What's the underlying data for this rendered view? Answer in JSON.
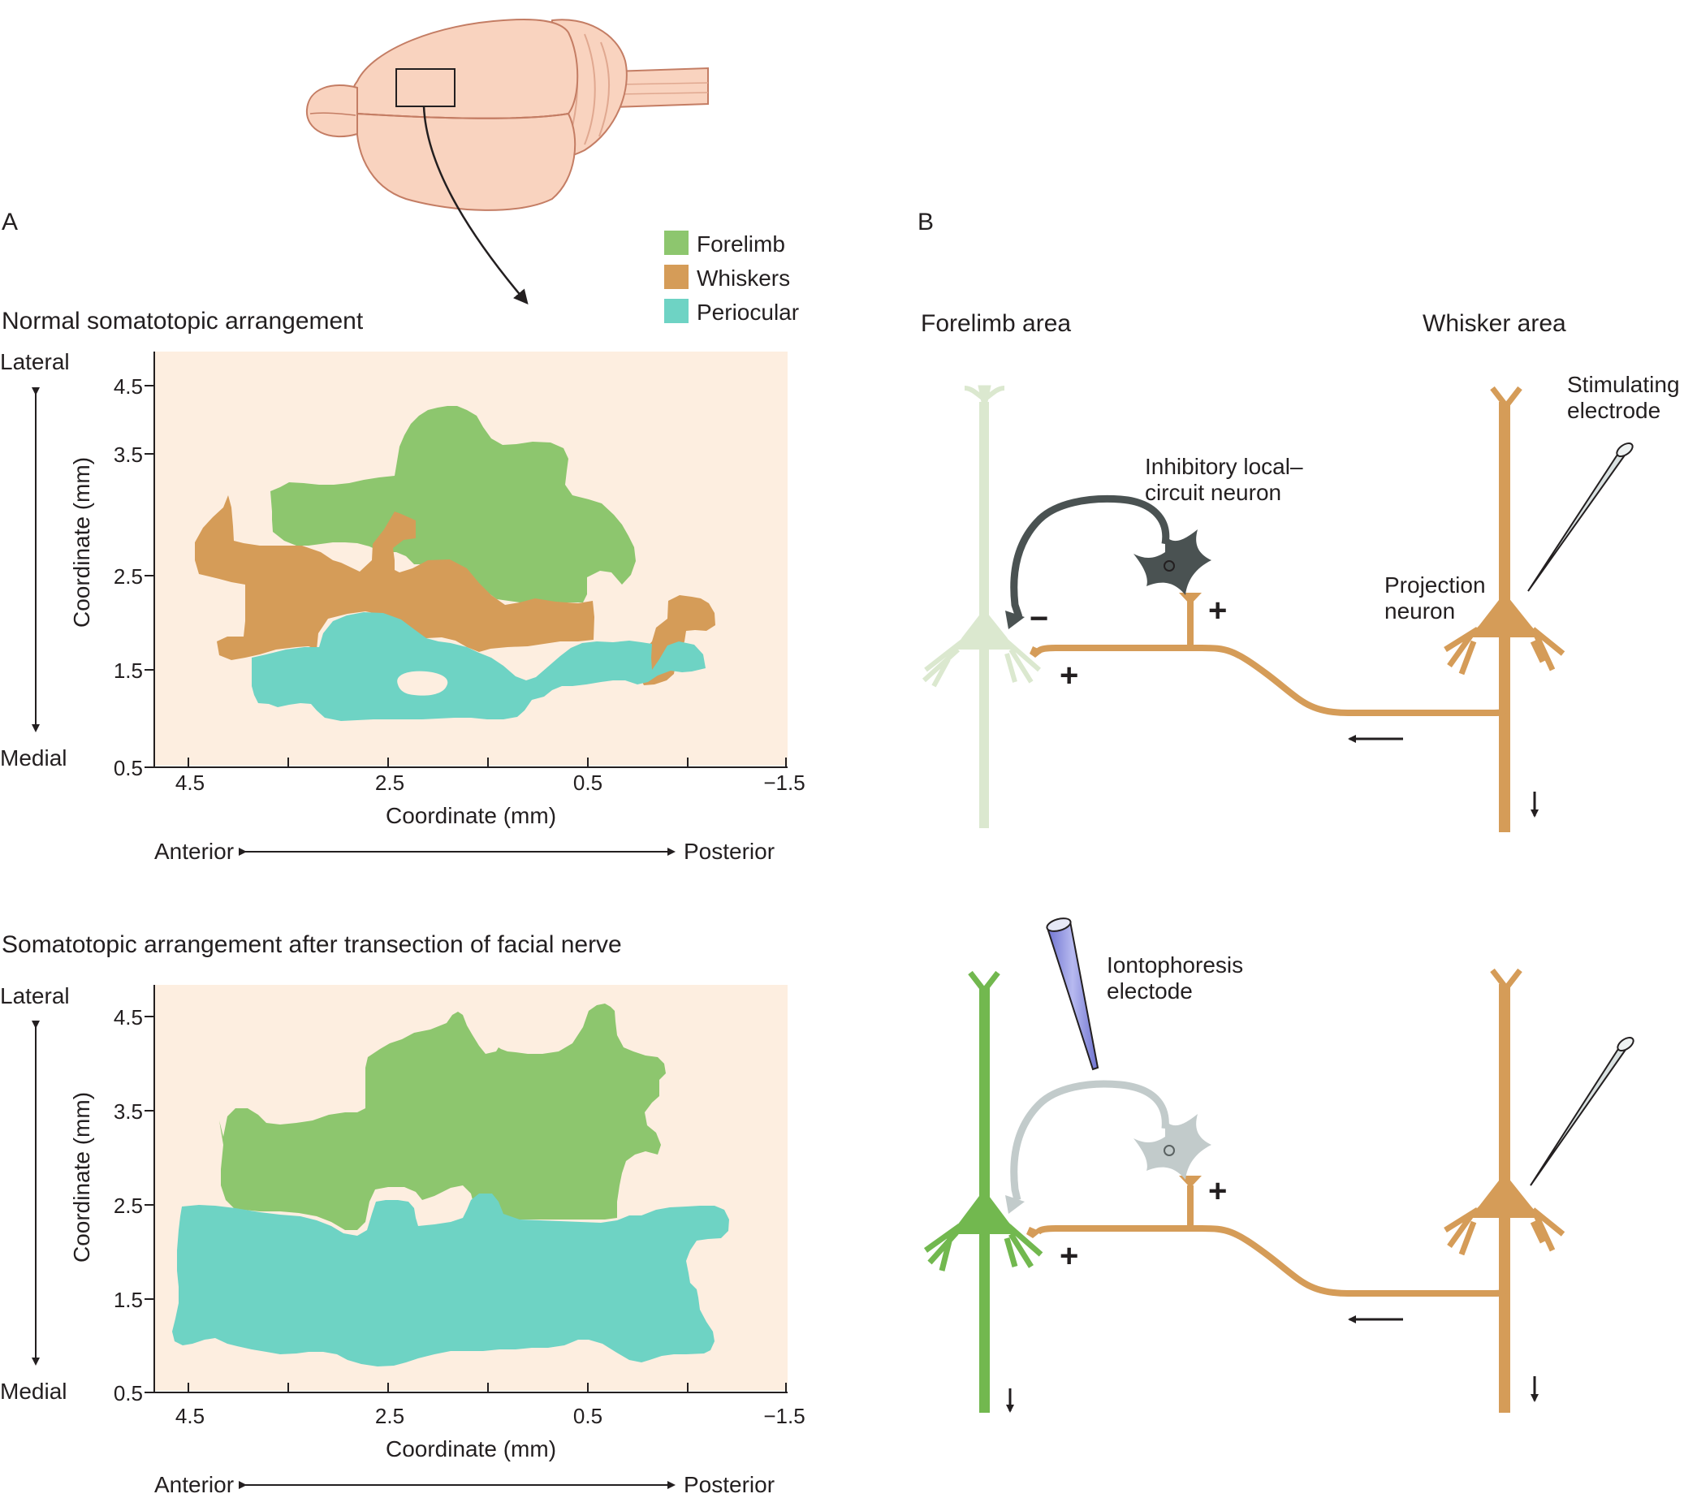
{
  "colors": {
    "forelimb": "#8dc66e",
    "whiskers": "#d59c58",
    "periocular": "#6ed3c4",
    "map_background": "#fdeee0",
    "brain": "#f9d3bf",
    "inhibitory_neuron": "#4a5252",
    "inhibitory_neuron_faded": "#c2cbcb",
    "forelimb_neuron_faded": "#dbe8cf",
    "forelimb_neuron_active": "#72b84f",
    "electrode": "#d9e1e1",
    "iontophoresis_fill": "#9094e0"
  },
  "panel_a": {
    "label": "A",
    "legend": [
      {
        "key": "forelimb",
        "label": "Forelimb"
      },
      {
        "key": "whiskers",
        "label": "Whiskers"
      },
      {
        "key": "periocular",
        "label": "Periocular"
      }
    ],
    "map_normal": {
      "title": "Normal somatotopic arrangement",
      "lateral_label": "Lateral",
      "medial_label": "Medial",
      "y_axis_label": "Coordinate (mm)",
      "y_ticks": [
        "4.5",
        "3.5",
        "2.5",
        "1.5",
        "0.5"
      ],
      "x_axis_label": "Coordinate (mm)",
      "x_ticks": [
        "4.5",
        "2.5",
        "0.5",
        "−1.5"
      ],
      "anterior_label": "Anterior",
      "posterior_label": "Posterior"
    },
    "map_transected": {
      "title": "Somatotopic arrangement after transection of facial nerve",
      "lateral_label": "Lateral",
      "medial_label": "Medial",
      "y_axis_label": "Coordinate (mm)",
      "y_ticks": [
        "4.5",
        "3.5",
        "2.5",
        "1.5",
        "0.5"
      ],
      "x_axis_label": "Coordinate (mm)",
      "x_ticks": [
        "4.5",
        "2.5",
        "0.5",
        "−1.5"
      ],
      "anterior_label": "Anterior",
      "posterior_label": "Posterior"
    }
  },
  "panel_b": {
    "label": "B",
    "forelimb_area_label": "Forelimb area",
    "whisker_area_label": "Whisker area",
    "top": {
      "stimulating_electrode_label": "Stimulating electrode",
      "inhibitory_neuron_label": "Inhibitory local– circuit neuron",
      "projection_neuron_label": "Projection neuron",
      "plus_sign": "+",
      "minus_sign": "−"
    },
    "bottom": {
      "iontophoresis_label": "Iontophoresis electode",
      "plus_sign": "+"
    }
  }
}
